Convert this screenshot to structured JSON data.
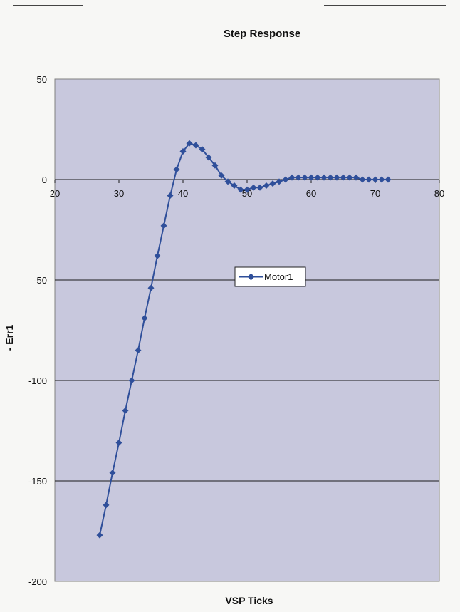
{
  "chart_data": {
    "type": "line",
    "title": "Step Response",
    "xlabel": "VSP Ticks",
    "ylabel": "- Err1",
    "xlim": [
      20,
      80
    ],
    "ylim": [
      -200,
      50
    ],
    "x_ticks": [
      20,
      30,
      40,
      50,
      60,
      70,
      80
    ],
    "y_ticks": [
      50,
      0,
      -50,
      -100,
      -150,
      -200
    ],
    "x_tick_labels": [
      "20",
      "30",
      "40",
      "50",
      "60",
      "70",
      "80"
    ],
    "y_tick_labels": [
      "50",
      "0",
      "-50",
      "-100",
      "-150",
      "-200"
    ],
    "grid": "horizontal",
    "legend_position": "center",
    "colors": {
      "series": "#2f4f9a",
      "plot_bg": "#c8c8dd",
      "page_bg": "#f7f7f5"
    },
    "series": [
      {
        "name": "Motor1",
        "marker": "diamond",
        "x": [
          27,
          28,
          29,
          30,
          31,
          32,
          33,
          34,
          35,
          36,
          37,
          38,
          39,
          40,
          41,
          42,
          43,
          44,
          45,
          46,
          47,
          48,
          49,
          50,
          51,
          52,
          53,
          54,
          55,
          56,
          57,
          58,
          59,
          60,
          61,
          62,
          63,
          64,
          65,
          66,
          67,
          68,
          69,
          70,
          71,
          72
        ],
        "y": [
          -177,
          -162,
          -146,
          -131,
          -115,
          -100,
          -85,
          -69,
          -54,
          -38,
          -23,
          -8,
          5,
          14,
          18,
          17,
          15,
          11,
          7,
          2,
          -1,
          -3,
          -5,
          -5,
          -4,
          -4,
          -3,
          -2,
          -1,
          0,
          1,
          1,
          1,
          1,
          1,
          1,
          1,
          1,
          1,
          1,
          1,
          0,
          0,
          0,
          0,
          0
        ]
      }
    ]
  }
}
